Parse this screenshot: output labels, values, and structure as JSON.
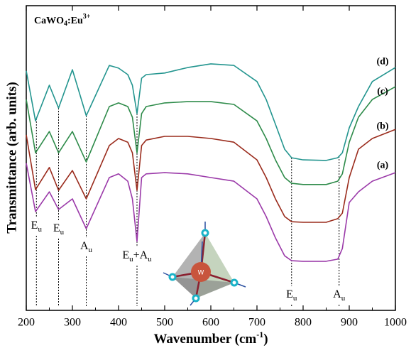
{
  "chart_data": {
    "type": "line",
    "title": [
      "CaWO",
      "4",
      ":Eu",
      "3+"
    ],
    "x_label": [
      "Wavenumber (cm",
      "-1",
      ")"
    ],
    "y_label": "Transmittance (arb. units)",
    "xlim": [
      200,
      1000
    ],
    "xticks": [
      200,
      300,
      400,
      500,
      600,
      700,
      800,
      900,
      1000
    ],
    "ylim": [
      0,
      100
    ],
    "x": [
      200,
      220,
      250,
      270,
      300,
      330,
      380,
      400,
      420,
      430,
      440,
      450,
      460,
      500,
      550,
      600,
      650,
      700,
      720,
      740,
      760,
      775,
      800,
      850,
      875,
      885,
      900,
      920,
      950,
      1000
    ],
    "series": [
      {
        "name": "(d)",
        "color": "#23958f",
        "values": [
          78.6,
          62.2,
          73.9,
          66.4,
          79.0,
          63.9,
          80.4,
          79.5,
          77.4,
          73.9,
          64.6,
          76.2,
          77.4,
          77.9,
          79.7,
          80.9,
          80.4,
          75.1,
          69.2,
          61.1,
          52.9,
          50.1,
          49.4,
          49.2,
          50.1,
          51.7,
          59.9,
          66.9,
          75.1,
          79.7
        ]
      },
      {
        "name": "(c)",
        "color": "#2e8b4a",
        "values": [
          69.2,
          51.7,
          58.7,
          51.7,
          58.7,
          48.7,
          66.9,
          68.1,
          66.9,
          63.4,
          51.7,
          64.6,
          66.9,
          68.1,
          68.5,
          68.5,
          67.6,
          62.2,
          56.4,
          49.4,
          43.6,
          41.7,
          41.3,
          41.3,
          42.4,
          44.8,
          55.2,
          63.4,
          69.2,
          73.4
        ]
      },
      {
        "name": "(b)",
        "color": "#9a2b1c",
        "values": [
          57.6,
          39.6,
          46.9,
          39.4,
          45.9,
          36.6,
          54.1,
          56.4,
          55.2,
          51.7,
          39.4,
          54.1,
          55.9,
          57.1,
          57.1,
          56.4,
          55.2,
          49.4,
          43.6,
          36.6,
          30.8,
          29.1,
          28.9,
          28.9,
          30.1,
          31.9,
          43.6,
          52.9,
          56.4,
          59.4
        ]
      },
      {
        "name": "(a)",
        "color": "#9b3aa9",
        "values": [
          48.3,
          32.4,
          38.9,
          33.1,
          36.6,
          26.8,
          43.6,
          44.8,
          42.4,
          36.6,
          22.6,
          43.6,
          44.8,
          45.2,
          44.8,
          43.6,
          42.4,
          36.6,
          30.8,
          23.8,
          17.9,
          16.3,
          16.1,
          16.1,
          16.8,
          20.3,
          35.4,
          38.9,
          42.4,
          45.2
        ]
      }
    ],
    "annotations": [
      {
        "x": 222,
        "label": [
          "E",
          "u"
        ]
      },
      {
        "x": 270,
        "label": [
          "E",
          "u"
        ]
      },
      {
        "x": 330,
        "label": [
          "A",
          "u"
        ]
      },
      {
        "x": 440,
        "label": [
          "E",
          "u",
          "+A",
          "u"
        ]
      },
      {
        "x": 775,
        "label": [
          "E",
          "u"
        ]
      },
      {
        "x": 878,
        "label": [
          "A",
          "u"
        ]
      }
    ],
    "inset_label": "W"
  }
}
